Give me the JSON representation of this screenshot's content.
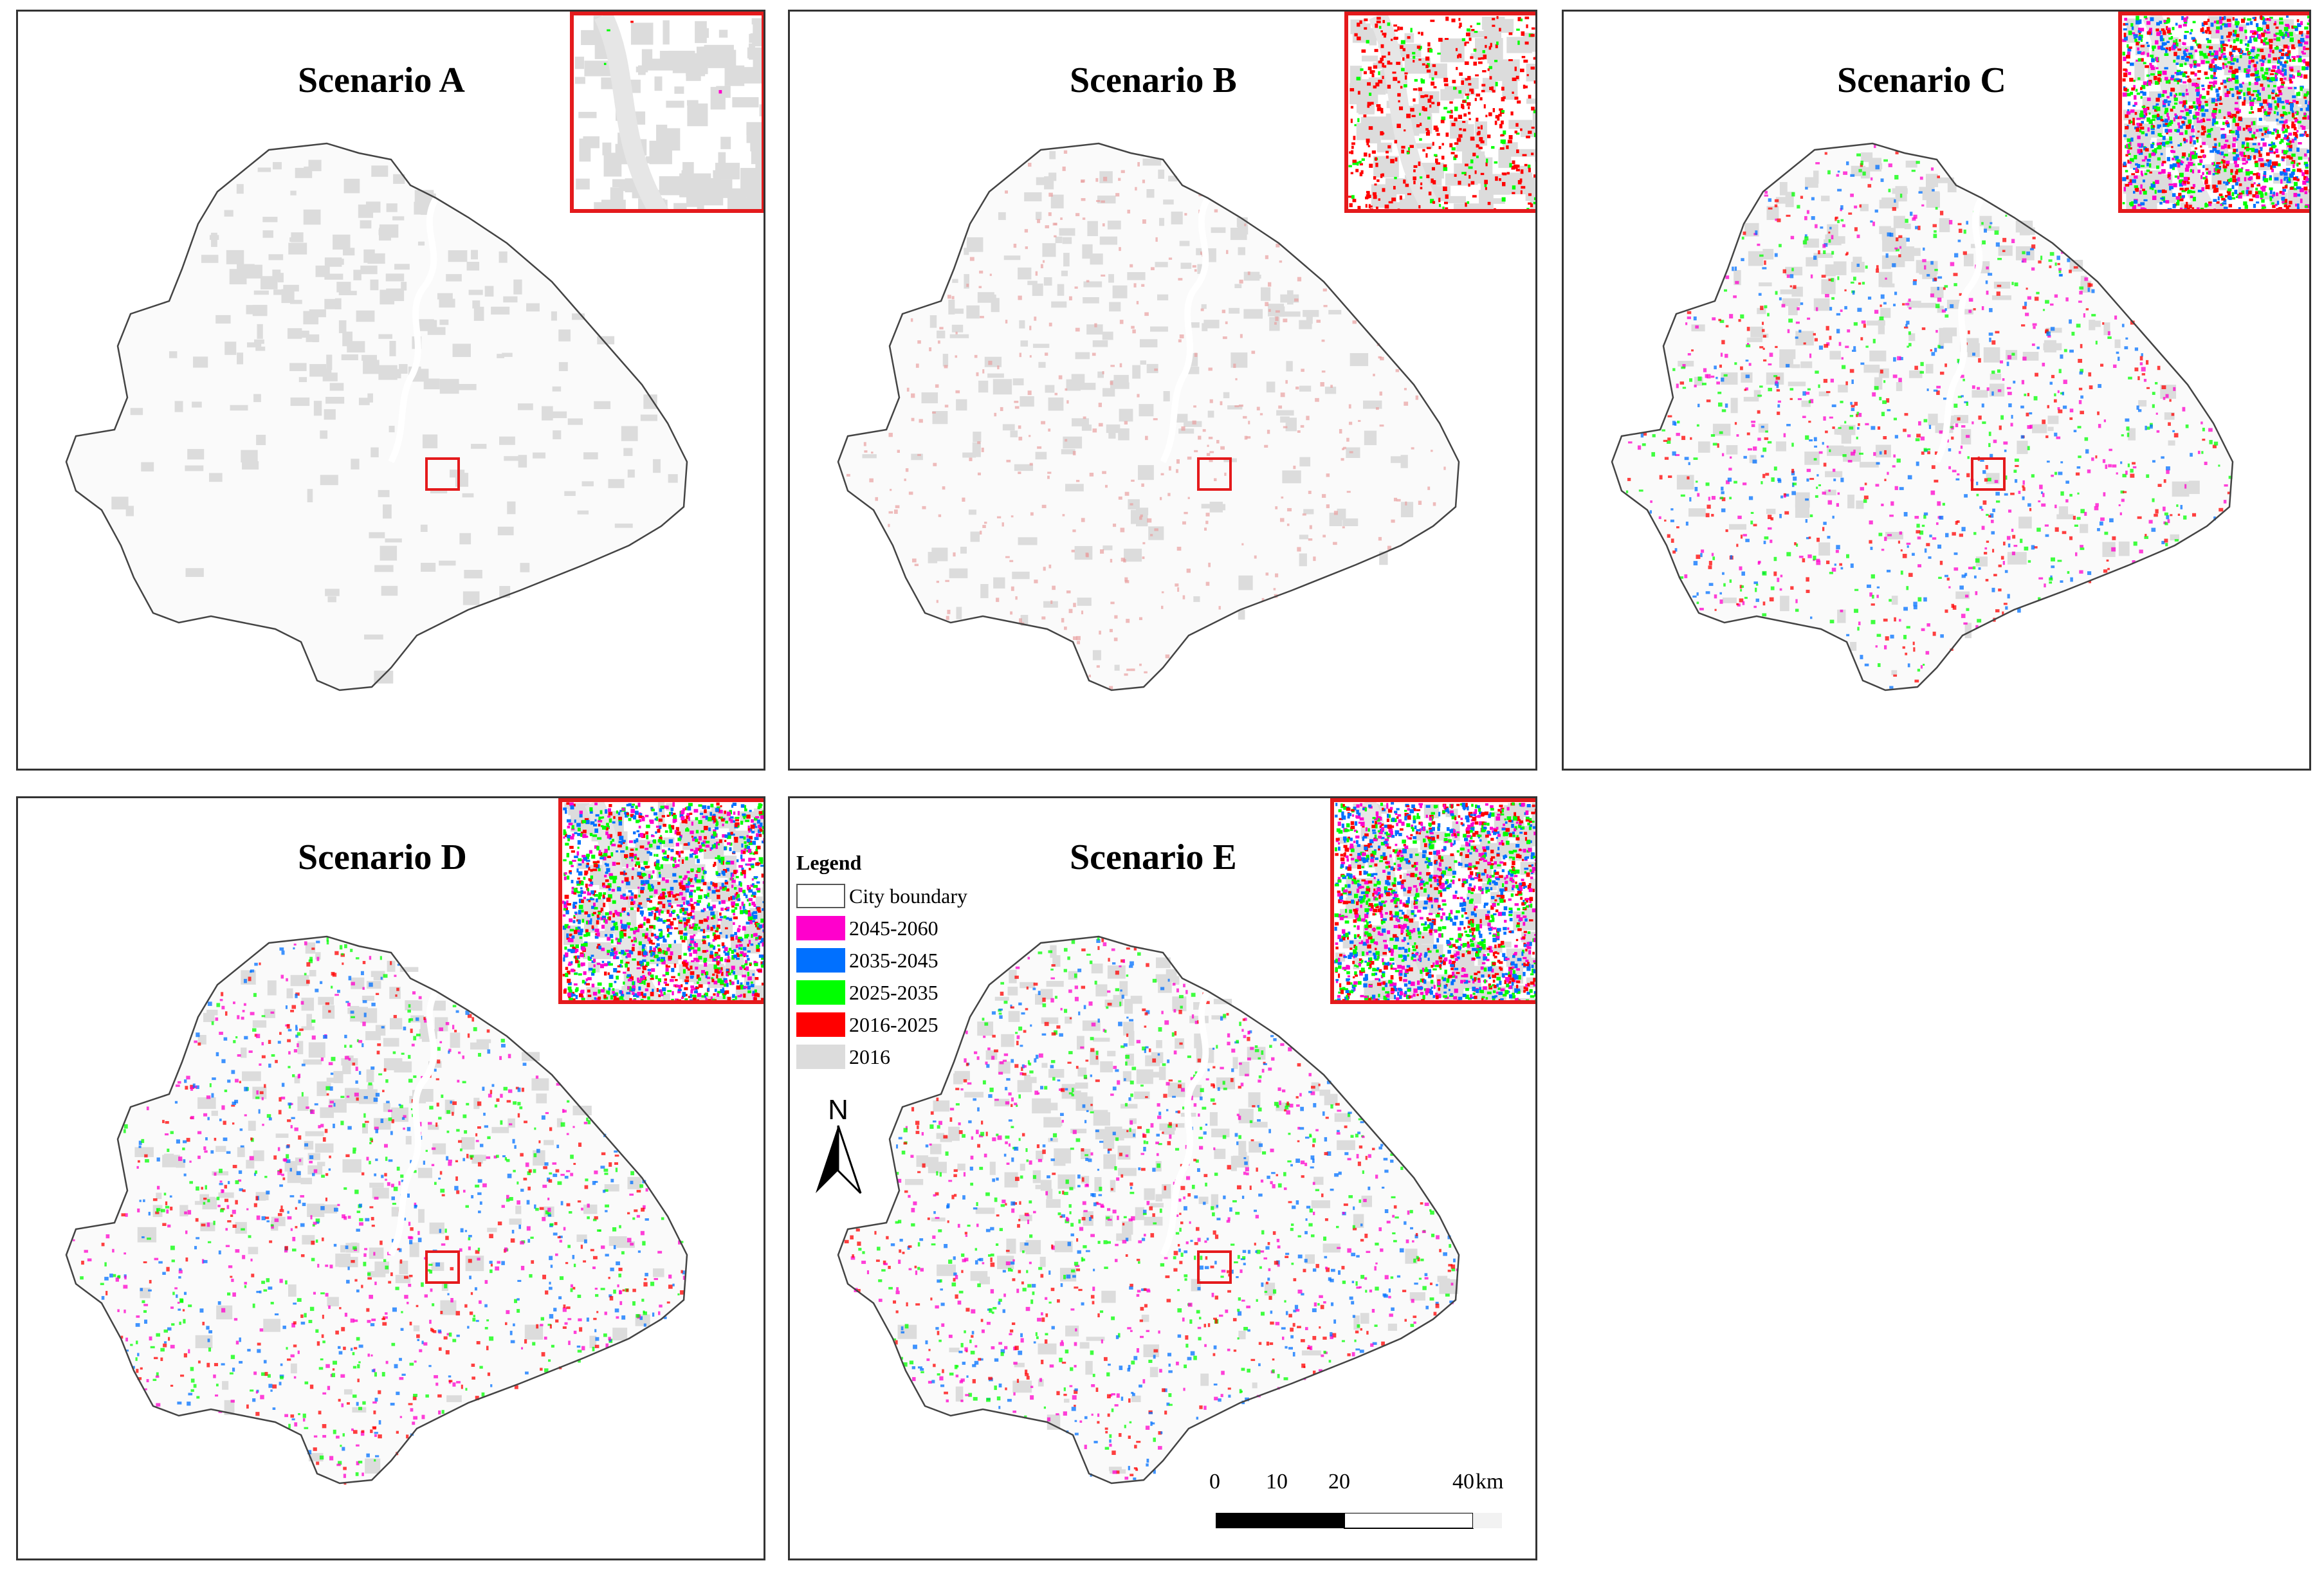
{
  "colors": {
    "period_2045_2060": "#ff00cc",
    "period_2035_2045": "#0070ff",
    "period_2025_2035": "#00ff00",
    "period_2016_2025": "#ff0000",
    "base_2016": "#dcdcdc",
    "boundary": "#444444",
    "inset_border": "#e41a1c"
  },
  "panels": [
    {
      "title": "Scenario A",
      "growth_level": 0.0
    },
    {
      "title": "Scenario B",
      "growth_level": 0.25
    },
    {
      "title": "Scenario C",
      "growth_level": 0.8
    },
    {
      "title": "Scenario D",
      "growth_level": 0.85
    },
    {
      "title": "Scenario E",
      "growth_level": 0.9
    }
  ],
  "legend": {
    "title": "Legend",
    "items": [
      {
        "label": "City boundary",
        "color": "#ffffff",
        "outline": true
      },
      {
        "label": "2045-2060",
        "color": "#ff00cc"
      },
      {
        "label": "2035-2045",
        "color": "#0070ff"
      },
      {
        "label": "2025-2035",
        "color": "#00ff00"
      },
      {
        "label": "2016-2025",
        "color": "#ff0000"
      },
      {
        "label": "2016",
        "color": "#dcdcdc"
      }
    ]
  },
  "north_arrow": {
    "label": "N"
  },
  "scale_bar": {
    "ticks": [
      "0",
      "10",
      "20",
      "40"
    ],
    "unit": "km"
  }
}
